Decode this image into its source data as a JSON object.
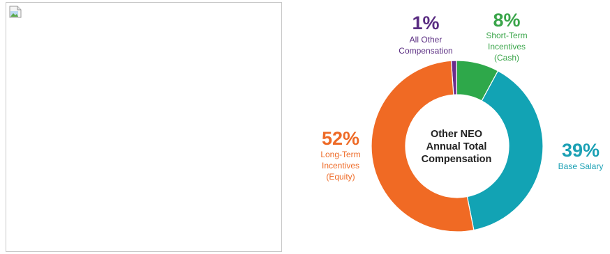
{
  "broken_image": {
    "icon": "broken-image-icon"
  },
  "chart_data": {
    "type": "pie",
    "donut": true,
    "center_label": [
      "Other NEO",
      "Annual Total",
      "Compensation"
    ],
    "slices": [
      {
        "key": "all_other",
        "value": 1,
        "pct_label": "1%",
        "label_lines": [
          "All Other",
          "Compensation"
        ],
        "color": "#6b2d8c"
      },
      {
        "key": "short_term",
        "value": 8,
        "pct_label": "8%",
        "label_lines": [
          "Short-Term",
          "Incentives",
          "(Cash)"
        ],
        "color": "#2ea84a"
      },
      {
        "key": "base_salary",
        "value": 39,
        "pct_label": "39%",
        "label_lines": [
          "Base Salary"
        ],
        "color": "#12a3b4"
      },
      {
        "key": "long_term",
        "value": 52,
        "pct_label": "52%",
        "label_lines": [
          "Long-Term",
          "Incentives",
          "(Equity)"
        ],
        "color": "#f06a24"
      }
    ],
    "label_colors": {
      "all_other": "#5a2d82",
      "short_term": "#3aa54a",
      "base_salary": "#1aa0b4",
      "long_term": "#ee6a26"
    },
    "legend": "none"
  }
}
